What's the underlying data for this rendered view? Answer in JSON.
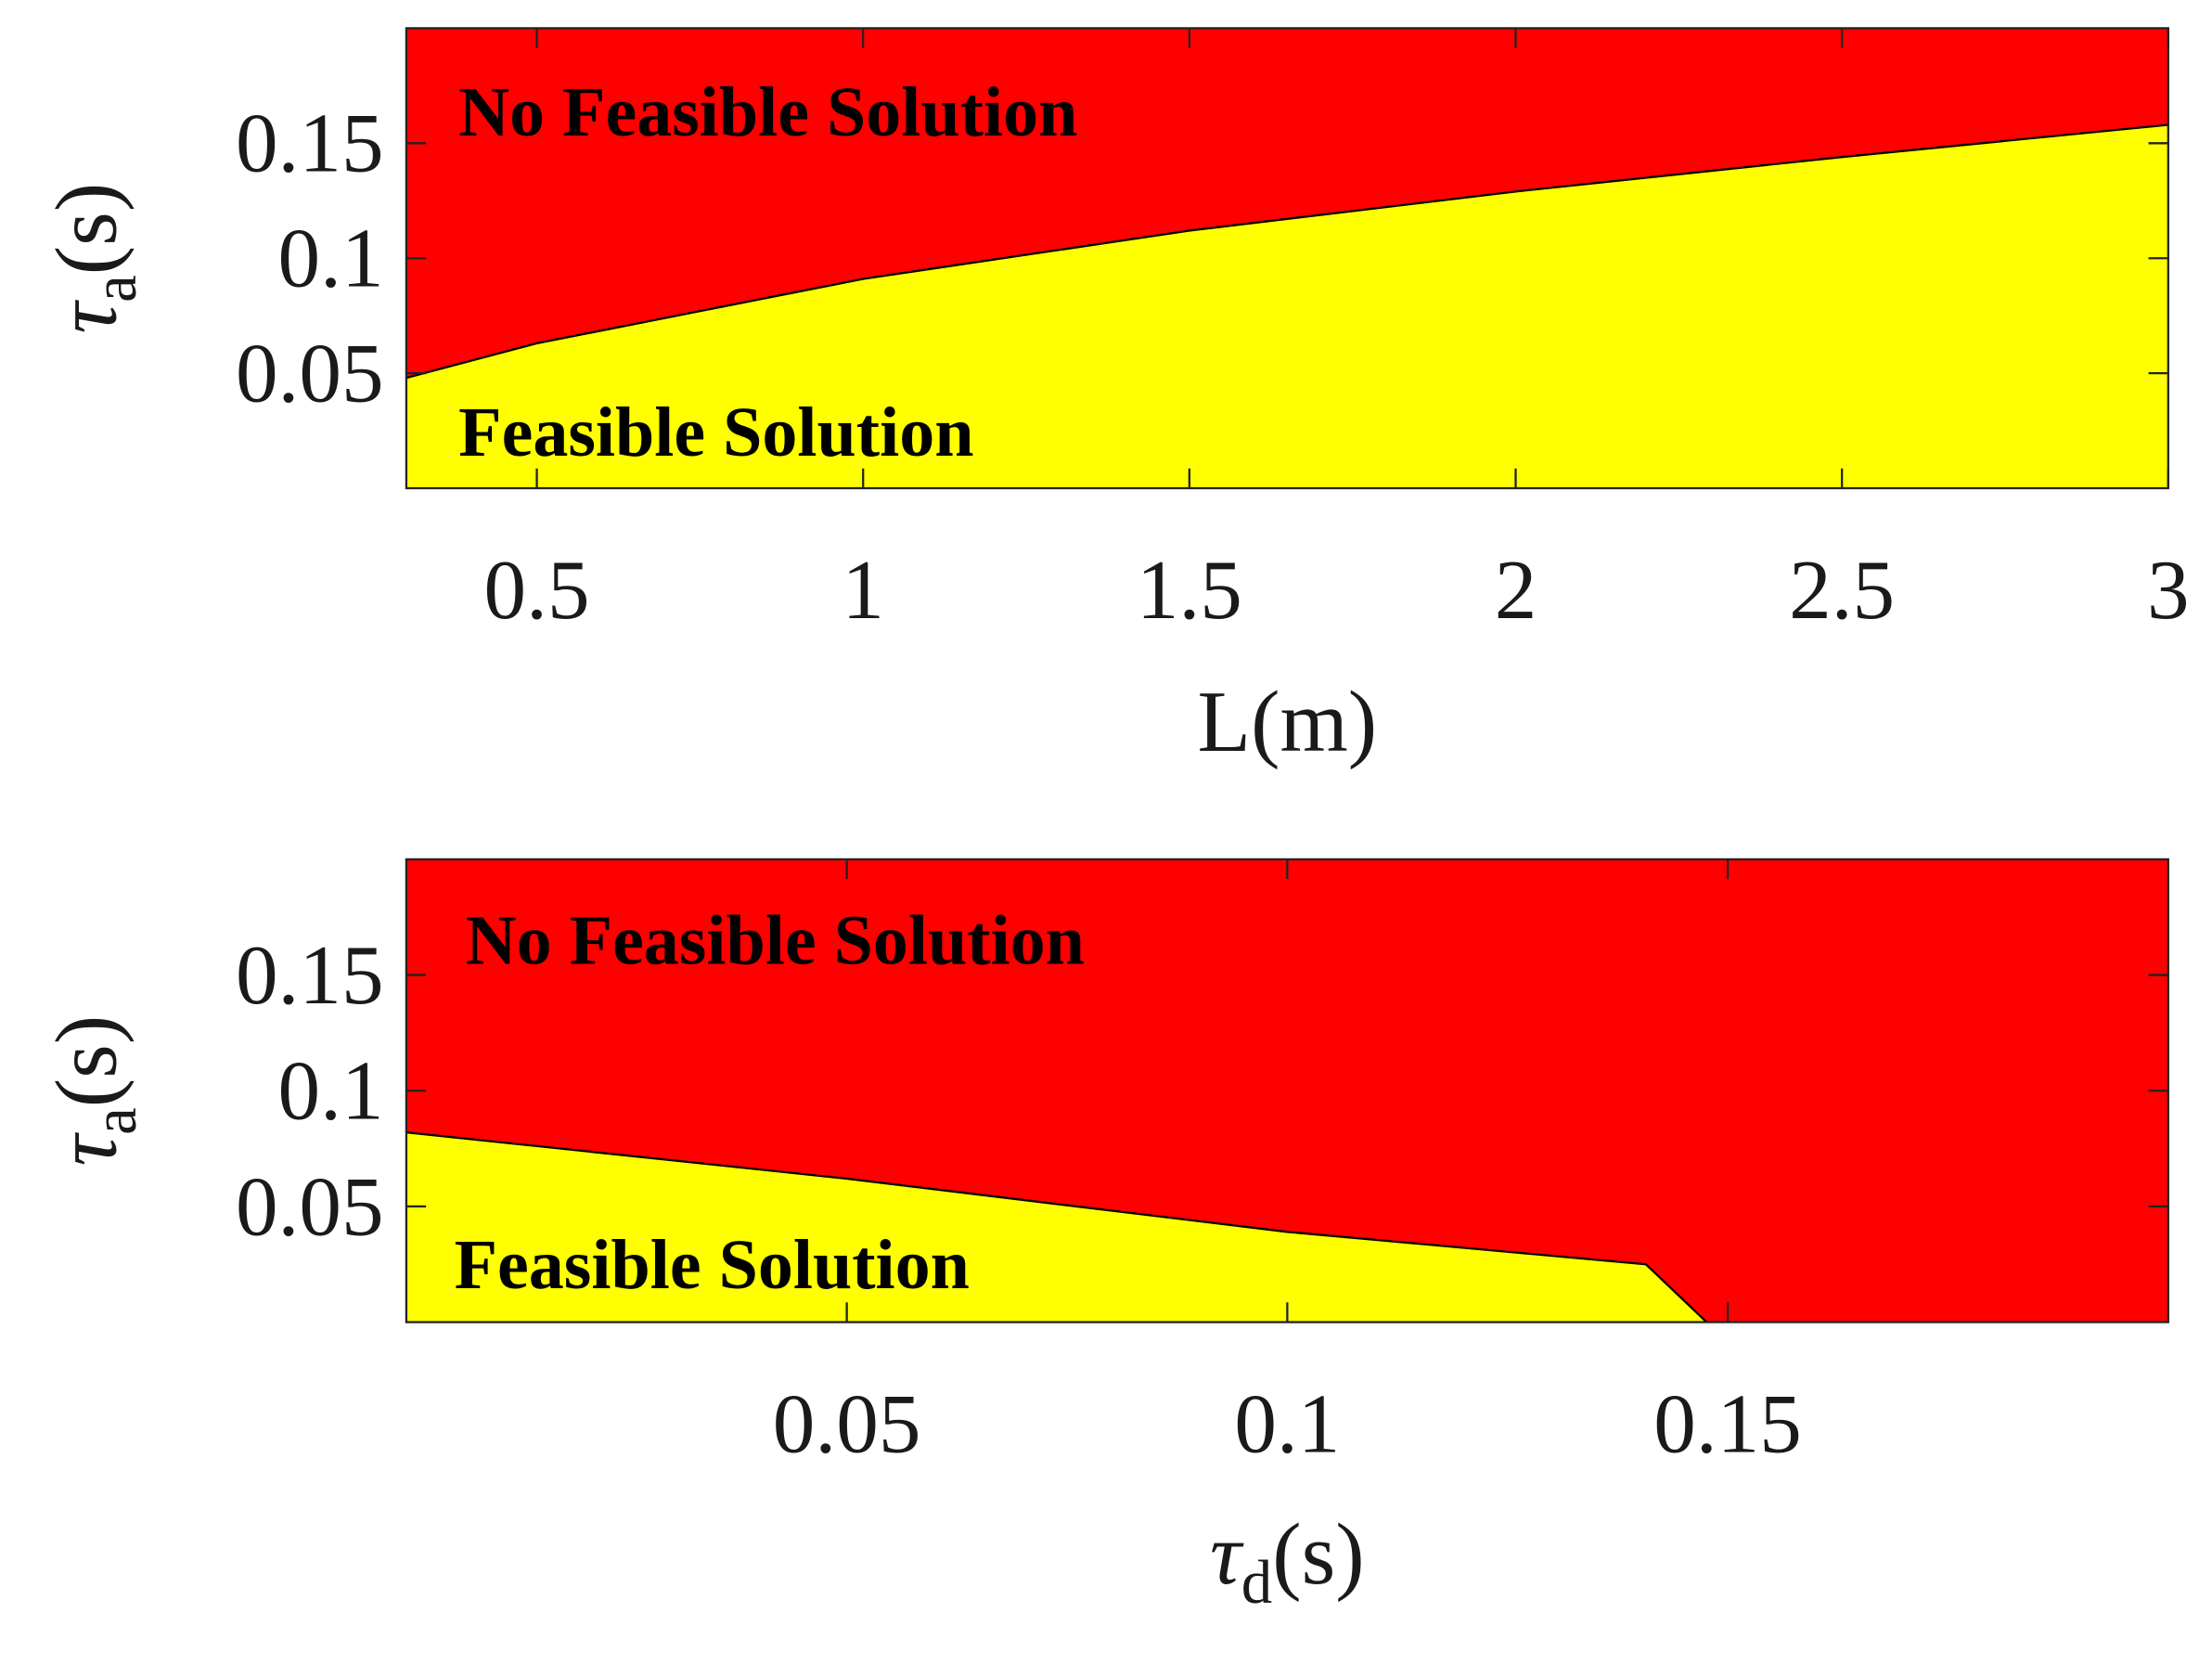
{
  "chart_data": [
    {
      "type": "area",
      "x": [
        0.3,
        0.5,
        1,
        1.5,
        2,
        2.5,
        3
      ],
      "values": [
        0.048,
        0.063,
        0.091,
        0.112,
        0.129,
        0.144,
        0.158
      ],
      "color": "#ffff00",
      "background_color": "#ff0000",
      "xlim": [
        0.3,
        3
      ],
      "ylim": [
        0,
        0.2
      ],
      "xticks": [
        0.5,
        1,
        1.5,
        2,
        2.5,
        3
      ],
      "yticks": [
        0.05,
        0.1,
        0.15
      ],
      "xlabel": "L(m)",
      "ylabel": {
        "symbol": "τ",
        "subscript": "a",
        "unit": "(s)"
      },
      "annotations": [
        "No Feasible Solution",
        "Feasible Solution"
      ]
    },
    {
      "type": "area",
      "x": [
        0,
        0.05,
        0.1,
        0.1407,
        0.1476
      ],
      "values": [
        0.082,
        0.062,
        0.039,
        0.025,
        0
      ],
      "color": "#ffff00",
      "background_color": "#ff0000",
      "xlim": [
        0,
        0.2
      ],
      "ylim": [
        0,
        0.2
      ],
      "xticks": [
        0.05,
        0.1,
        0.15
      ],
      "yticks": [
        0.05,
        0.1,
        0.15
      ],
      "xlabel": {
        "symbol": "τ",
        "subscript": "d",
        "unit": "(s)"
      },
      "ylabel": {
        "symbol": "τ",
        "subscript": "a",
        "unit": "(s)"
      },
      "annotations": [
        "No Feasible Solution",
        "Feasible Solution"
      ]
    }
  ]
}
